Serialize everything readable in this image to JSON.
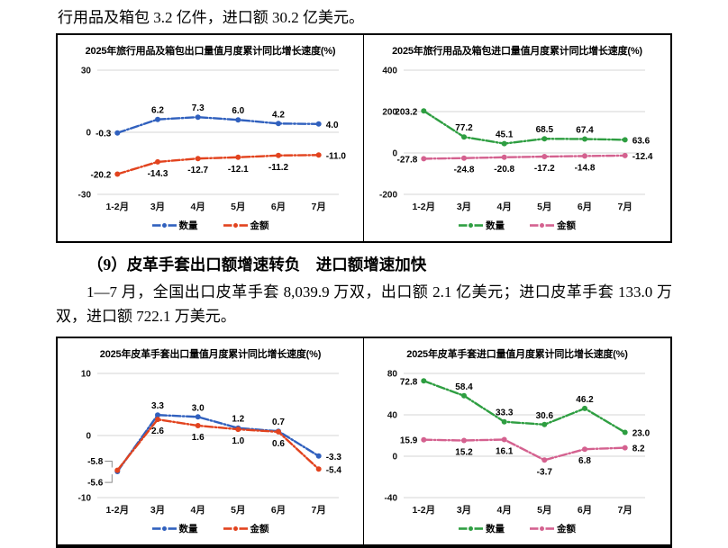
{
  "page": {
    "intro_text": "行用品及箱包 3.2 亿件，进口额 30.2 亿美元。",
    "section_heading": "（9）皮革手套出口额增速转负　进口额增速加快",
    "paragraph": "1—7 月，全国出口皮革手套 8,039.9 万双，出口额 2.1 亿美元；进口皮革手套 133.0 万双，进口额 722.1 万美元。"
  },
  "colors": {
    "quantity_blue": "#3060BE",
    "amount_red": "#E2431E",
    "quantity_green": "#2E9E41",
    "amount_pink": "#D4618F",
    "gridline": "#D6D6D6",
    "border": "#000000"
  },
  "chart_data": [
    {
      "type": "line",
      "title": "2025年旅行用品及箱包出口量值月度累计同比增长速度(%)",
      "categories": [
        "1-2月",
        "3月",
        "4月",
        "5月",
        "6月",
        "7月"
      ],
      "ylim": [
        -30,
        30
      ],
      "yticks": [
        30,
        0,
        -30
      ],
      "grid": true,
      "legend_position": "bottom",
      "series": [
        {
          "name": "数量",
          "color": "#3060BE",
          "values": [
            -0.3,
            6.2,
            7.3,
            6.0,
            4.2,
            4.0
          ],
          "label_sides": [
            "left",
            "above",
            "above",
            "above",
            "above",
            "right"
          ]
        },
        {
          "name": "金额",
          "color": "#E2431E",
          "values": [
            -20.2,
            -14.3,
            -12.7,
            -12.1,
            -11.2,
            -11.0
          ],
          "label_sides": [
            "left",
            "below",
            "below",
            "below",
            "below",
            "right"
          ]
        }
      ]
    },
    {
      "type": "line",
      "title": "2025年旅行用品及箱包进口量值月度累计同比增长速度(%)",
      "categories": [
        "1-2月",
        "3月",
        "4月",
        "5月",
        "6月",
        "7月"
      ],
      "ylim": [
        -200,
        400
      ],
      "yticks": [
        400,
        200,
        0,
        -200
      ],
      "grid": true,
      "legend_position": "bottom",
      "series": [
        {
          "name": "数量",
          "color": "#2E9E41",
          "values": [
            203.2,
            77.2,
            45.1,
            68.5,
            67.4,
            63.6
          ],
          "label_sides": [
            "left",
            "above",
            "above",
            "above",
            "above",
            "right"
          ]
        },
        {
          "name": "金额",
          "color": "#D4618F",
          "values": [
            -27.8,
            -24.8,
            -20.8,
            -17.2,
            -14.8,
            -12.4
          ],
          "label_sides": [
            "left",
            "below",
            "below",
            "below",
            "below",
            "right"
          ]
        }
      ]
    },
    {
      "type": "line",
      "title": "2025年皮革手套出口量值月度累计同比增长速度(%)",
      "categories": [
        "1-2月",
        "3月",
        "4月",
        "5月",
        "6月",
        "7月"
      ],
      "ylim": [
        -10,
        10
      ],
      "yticks": [
        10,
        0,
        -10
      ],
      "grid": true,
      "legend_position": "bottom",
      "series": [
        {
          "name": "数量",
          "color": "#3060BE",
          "values": [
            -5.8,
            3.3,
            3.0,
            1.2,
            0.7,
            -3.3
          ],
          "label_sides": [
            "leftup",
            "above",
            "above",
            "above",
            "above",
            "right"
          ]
        },
        {
          "name": "金额",
          "color": "#E2431E",
          "values": [
            -5.6,
            2.6,
            1.6,
            1.0,
            0.6,
            -5.4
          ],
          "label_sides": [
            "leftdown",
            "below",
            "below",
            "below",
            "below",
            "right"
          ]
        }
      ]
    },
    {
      "type": "line",
      "title": "2025年皮革手套进口量值月度累计同比增长速度(%)",
      "categories": [
        "1-2月",
        "3月",
        "4月",
        "5月",
        "6月",
        "7月"
      ],
      "ylim": [
        -40,
        80
      ],
      "yticks": [
        80,
        40,
        0,
        -40
      ],
      "grid": true,
      "legend_position": "bottom",
      "series": [
        {
          "name": "数量",
          "color": "#2E9E41",
          "values": [
            72.8,
            58.4,
            33.3,
            30.6,
            46.2,
            23.0
          ],
          "label_sides": [
            "left",
            "above",
            "above",
            "above",
            "above",
            "right"
          ]
        },
        {
          "name": "金额",
          "color": "#D4618F",
          "values": [
            15.9,
            15.2,
            16.1,
            -3.7,
            6.8,
            8.2
          ],
          "label_sides": [
            "left",
            "below",
            "below",
            "below",
            "below",
            "right"
          ]
        }
      ]
    }
  ]
}
